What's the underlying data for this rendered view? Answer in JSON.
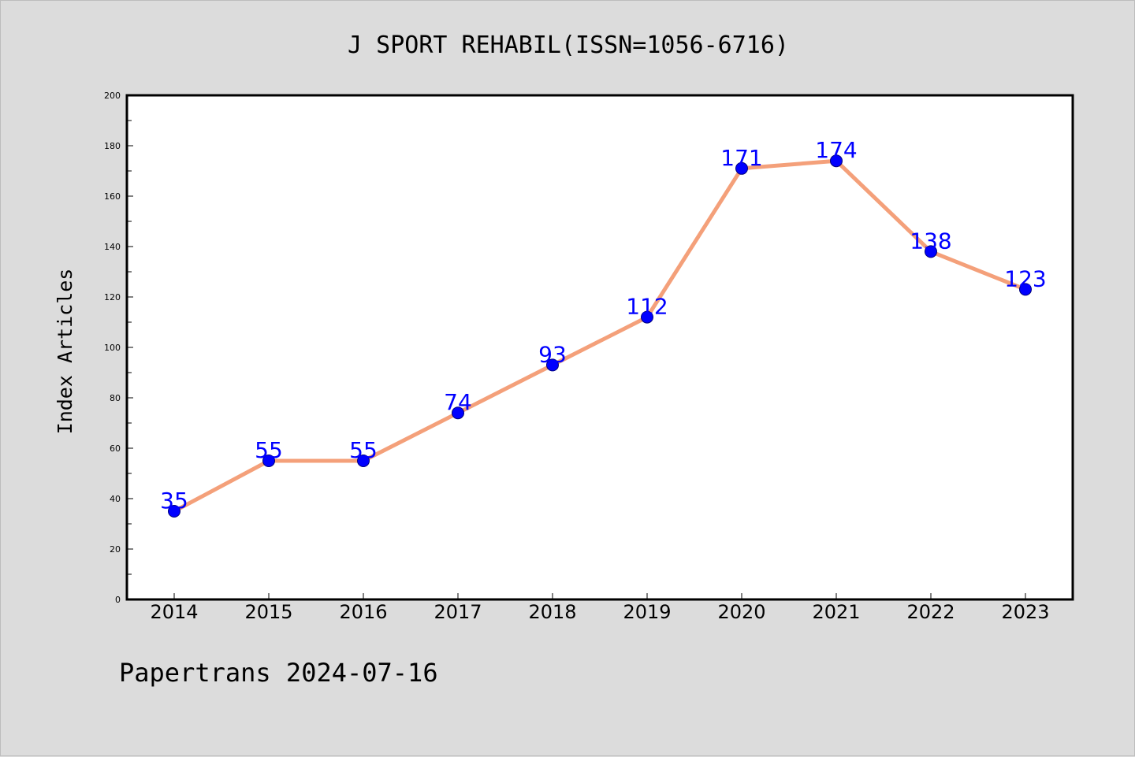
{
  "colors": {
    "background": "#dcdcdc",
    "plot_background": "#ffffff",
    "line": "#f4a07a",
    "marker": "#0000ff",
    "label": "#0000ff",
    "text": "#000000"
  },
  "chart_data": {
    "type": "line",
    "title": "J SPORT REHABIL(ISSN=1056-6716)",
    "xlabel": "",
    "ylabel": "Index Articles",
    "categories": [
      "2014",
      "2015",
      "2016",
      "2017",
      "2018",
      "2019",
      "2020",
      "2021",
      "2022",
      "2023"
    ],
    "series": [
      {
        "values": [
          35,
          55,
          55,
          74,
          93,
          112,
          171,
          174,
          138,
          123
        ]
      }
    ],
    "ylim": [
      0,
      200
    ],
    "yticks": [
      0,
      20,
      40,
      60,
      80,
      100,
      120,
      140,
      160,
      180,
      200
    ],
    "grid": false,
    "legend": "none",
    "footer": "Papertrans 2024-07-16"
  }
}
